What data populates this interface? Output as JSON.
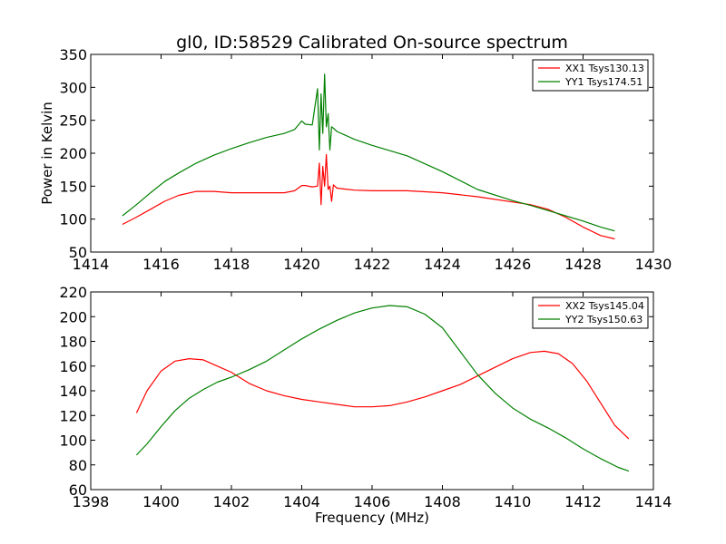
{
  "chart_data": [
    {
      "type": "line",
      "title": "gl0, ID:58529 Calibrated On-source spectrum",
      "xlabel": "",
      "ylabel": "Power in Kelvin",
      "xlim": [
        1414,
        1430
      ],
      "ylim": [
        50,
        350
      ],
      "xticks": [
        1414,
        1416,
        1418,
        1420,
        1422,
        1424,
        1426,
        1428,
        1430
      ],
      "yticks": [
        50,
        100,
        150,
        200,
        250,
        300,
        350
      ],
      "legend": "top-right",
      "grid": false,
      "series": [
        {
          "name": "XX1 Tsys130.13",
          "color": "#ff0000",
          "x": [
            1414.9,
            1415.3,
            1415.7,
            1416.1,
            1416.5,
            1417.0,
            1417.5,
            1418.0,
            1418.5,
            1419.0,
            1419.5,
            1419.8,
            1420.0,
            1420.1,
            1420.3,
            1420.45,
            1420.5,
            1420.55,
            1420.6,
            1420.65,
            1420.7,
            1420.75,
            1420.8,
            1420.85,
            1420.9,
            1421.0,
            1421.5,
            1422.0,
            1423.0,
            1424.0,
            1425.0,
            1426.0,
            1426.5,
            1427.0,
            1427.5,
            1428.0,
            1428.5,
            1428.9
          ],
          "y": [
            92,
            103,
            115,
            127,
            136,
            142,
            142,
            140,
            140,
            140,
            140,
            143,
            151,
            151,
            149,
            150,
            185,
            122,
            180,
            150,
            198,
            145,
            150,
            127,
            152,
            147,
            144,
            143,
            143,
            140,
            134,
            126,
            122,
            115,
            103,
            88,
            75,
            70
          ]
        },
        {
          "name": "YY1 Tsys174.51",
          "color": "#008000",
          "x": [
            1414.9,
            1415.3,
            1415.7,
            1416.1,
            1416.5,
            1417.0,
            1417.5,
            1418.0,
            1418.5,
            1419.0,
            1419.5,
            1419.8,
            1420.0,
            1420.1,
            1420.3,
            1420.45,
            1420.5,
            1420.55,
            1420.6,
            1420.65,
            1420.7,
            1420.75,
            1420.8,
            1420.85,
            1420.9,
            1421.0,
            1421.5,
            1422.0,
            1423.0,
            1424.0,
            1425.0,
            1426.0,
            1426.5,
            1427.0,
            1427.5,
            1428.0,
            1428.5,
            1428.9
          ],
          "y": [
            105,
            122,
            140,
            157,
            170,
            185,
            197,
            207,
            216,
            224,
            230,
            236,
            249,
            244,
            243,
            298,
            205,
            290,
            230,
            320,
            240,
            260,
            205,
            240,
            238,
            233,
            221,
            212,
            196,
            172,
            145,
            128,
            121,
            113,
            105,
            97,
            88,
            82
          ]
        }
      ]
    },
    {
      "type": "line",
      "title": "",
      "xlabel": "Frequency (MHz)",
      "ylabel": "",
      "xlim": [
        1398,
        1414
      ],
      "ylim": [
        60,
        220
      ],
      "xticks": [
        1398,
        1400,
        1402,
        1404,
        1406,
        1408,
        1410,
        1412,
        1414
      ],
      "yticks": [
        60,
        80,
        100,
        120,
        140,
        160,
        180,
        200,
        220
      ],
      "legend": "top-right",
      "grid": false,
      "series": [
        {
          "name": "XX2 Tsys145.04",
          "color": "#ff0000",
          "x": [
            1399.3,
            1399.6,
            1400.0,
            1400.4,
            1400.8,
            1401.2,
            1401.6,
            1402.0,
            1402.5,
            1403.0,
            1403.5,
            1404.0,
            1404.5,
            1405.0,
            1405.5,
            1406.0,
            1406.5,
            1407.0,
            1407.5,
            1408.0,
            1408.5,
            1409.0,
            1409.5,
            1410.0,
            1410.5,
            1410.9,
            1411.3,
            1411.7,
            1412.1,
            1412.5,
            1412.9,
            1413.3
          ],
          "y": [
            122,
            140,
            156,
            164,
            166,
            165,
            160,
            155,
            146,
            140,
            136,
            133,
            131,
            129,
            127,
            127,
            128,
            131,
            135,
            140,
            145,
            152,
            159,
            166,
            171,
            172,
            170,
            162,
            148,
            130,
            112,
            101
          ]
        },
        {
          "name": "YY2 Tsys150.63",
          "color": "#008000",
          "x": [
            1399.3,
            1399.6,
            1400.0,
            1400.4,
            1400.8,
            1401.2,
            1401.6,
            1402.0,
            1402.5,
            1403.0,
            1403.5,
            1404.0,
            1404.5,
            1405.0,
            1405.5,
            1406.0,
            1406.5,
            1407.0,
            1407.5,
            1408.0,
            1408.5,
            1409.0,
            1409.5,
            1410.0,
            1410.5,
            1411.0,
            1411.5,
            1412.0,
            1412.5,
            1413.0,
            1413.3
          ],
          "y": [
            88,
            97,
            111,
            124,
            134,
            141,
            147,
            151,
            157,
            164,
            173,
            182,
            190,
            197,
            203,
            207,
            209,
            208,
            202,
            191,
            172,
            153,
            138,
            126,
            117,
            110,
            102,
            93,
            85,
            78,
            75
          ]
        }
      ]
    }
  ]
}
